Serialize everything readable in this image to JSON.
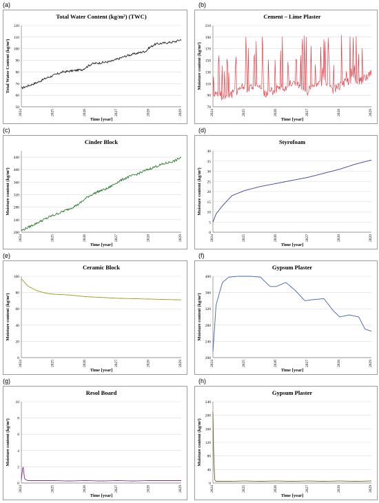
{
  "chart_data": [
    {
      "panel": "(a)",
      "type": "line",
      "title": "Total Water Content (kg/m²) (TWC)",
      "xlabel": "Time [year]",
      "ylabel": "Total Water Content (kg/m²)",
      "xlim": [
        2024,
        2029
      ],
      "ylim": [
        50,
        120
      ],
      "yticks": [
        50,
        60,
        70,
        80,
        90,
        100,
        110,
        120
      ],
      "xticks": [
        "2024",
        "2025",
        "2026",
        "2027",
        "2028",
        "2029"
      ],
      "grid": true,
      "series": [
        {
          "color": "#222222",
          "noise": 1.0,
          "x": [
            2024,
            2024.2,
            2024.5,
            2024.8,
            2025.0,
            2025.3,
            2025.6,
            2025.9,
            2026.2,
            2026.5,
            2026.8,
            2027.0,
            2027.3,
            2027.6,
            2027.9,
            2028.0,
            2028.2,
            2028.5,
            2028.8,
            2029.0
          ],
          "y": [
            66,
            68,
            71,
            75,
            77,
            80,
            81,
            82,
            87,
            88,
            89,
            91,
            94,
            96,
            98,
            101,
            104,
            105,
            106,
            108
          ]
        }
      ]
    },
    {
      "panel": "(b)",
      "type": "line",
      "title": "Cement – Lime Plaster",
      "xlabel": "Time [year]",
      "ylabel": "Moisture content (kg/m³)",
      "xlim": [
        2024,
        2029
      ],
      "ylim": [
        70,
        210
      ],
      "yticks": [
        70,
        90,
        110,
        130,
        150,
        170,
        190,
        210
      ],
      "xticks": [
        "2024",
        "2025",
        "2026",
        "2027",
        "2028",
        "2029"
      ],
      "grid": true,
      "series": [
        {
          "color": "#e8212a",
          "spiky": true,
          "spikeTop": 195,
          "x": [
            2024,
            2024.3,
            2024.6,
            2024.9,
            2025.1,
            2025.4,
            2025.7,
            2026.0,
            2026.3,
            2026.6,
            2026.9,
            2027.2,
            2027.5,
            2027.8,
            2028.1,
            2028.4,
            2028.7,
            2029.0
          ],
          "y": [
            95,
            88,
            92,
            105,
            100,
            110,
            90,
            100,
            105,
            112,
            95,
            105,
            115,
            100,
            110,
            120,
            115,
            130
          ]
        }
      ]
    },
    {
      "panel": "(c)",
      "type": "line",
      "title": "Cinder Block",
      "xlabel": "Time [year]",
      "ylabel": "Moisture content (kg/m³)",
      "xlim": [
        2024,
        2029
      ],
      "ylim": [
        200,
        460
      ],
      "yticks": [
        200,
        240,
        280,
        320,
        360,
        400,
        440
      ],
      "xticks": [
        "2024",
        "2025",
        "2026",
        "2027",
        "2028",
        "2029"
      ],
      "grid": true,
      "series": [
        {
          "color": "#2e7d32",
          "noise": 4,
          "x": [
            2024,
            2024.3,
            2024.6,
            2024.9,
            2025.2,
            2025.5,
            2025.8,
            2026.1,
            2026.4,
            2026.7,
            2027.0,
            2027.3,
            2027.6,
            2027.9,
            2028.2,
            2028.5,
            2028.8,
            2029.0
          ],
          "y": [
            205,
            220,
            235,
            250,
            262,
            275,
            290,
            315,
            330,
            340,
            360,
            375,
            385,
            398,
            410,
            420,
            428,
            440
          ]
        }
      ]
    },
    {
      "panel": "(d)",
      "type": "line",
      "title": "Styrofoam",
      "xlabel": "Time [year]",
      "ylabel": "Moisture content (kg/m³)",
      "xlim": [
        2024,
        2029
      ],
      "ylim": [
        0,
        40
      ],
      "yticks": [
        0,
        5,
        10,
        15,
        20,
        25,
        30,
        35,
        40
      ],
      "xticks": [
        "2024",
        "2025",
        "2026",
        "2027",
        "2028",
        "2029"
      ],
      "grid": true,
      "series": [
        {
          "color": "#3b3b98",
          "x": [
            2024,
            2024.1,
            2024.3,
            2024.6,
            2025.0,
            2025.5,
            2026.0,
            2026.5,
            2027.0,
            2027.5,
            2028.0,
            2028.5,
            2029.0
          ],
          "y": [
            5,
            9,
            13,
            18,
            20.5,
            22.5,
            24,
            25.5,
            27,
            29,
            31,
            33.5,
            35.5
          ]
        }
      ]
    },
    {
      "panel": "(e)",
      "type": "line",
      "title": "Ceramic Block",
      "xlabel": "Time [year]",
      "ylabel": "Moisture content (kg/m³)",
      "xlim": [
        2024,
        2029
      ],
      "ylim": [
        0,
        100
      ],
      "yticks": [
        0,
        20,
        40,
        60,
        80,
        100
      ],
      "xticks": [
        "2024",
        "2025",
        "2026",
        "2027",
        "2028",
        "2029"
      ],
      "grid": true,
      "series": [
        {
          "color": "#9a9a16",
          "x": [
            2024,
            2024.2,
            2024.5,
            2024.8,
            2025.0,
            2025.5,
            2026.0,
            2026.5,
            2027.0,
            2027.5,
            2028.0,
            2028.5,
            2029.0
          ],
          "y": [
            97,
            88,
            82,
            79,
            78,
            77,
            75,
            74,
            73,
            72.5,
            72,
            71.5,
            71
          ]
        }
      ]
    },
    {
      "panel": "(f)",
      "type": "line",
      "title": "Gypsum Plaster",
      "xlabel": "Time [year]",
      "ylabel": "Moisture content (kg/m³)",
      "xlim": [
        2024,
        2029
      ],
      "ylim": [
        200,
        400
      ],
      "yticks": [
        200,
        240,
        280,
        320,
        360,
        400
      ],
      "xticks": [
        "2024",
        "2025",
        "2026",
        "2027",
        "2028",
        "2029"
      ],
      "grid": true,
      "series": [
        {
          "color": "#3f5fb5",
          "x": [
            2024,
            2024.1,
            2024.3,
            2024.5,
            2024.8,
            2025.2,
            2025.5,
            2025.8,
            2026.0,
            2026.3,
            2026.6,
            2026.9,
            2027.2,
            2027.5,
            2027.8,
            2028.0,
            2028.3,
            2028.6,
            2028.8,
            2029.0
          ],
          "y": [
            215,
            330,
            385,
            398,
            400,
            400,
            398,
            375,
            375,
            385,
            365,
            340,
            343,
            345,
            315,
            300,
            305,
            300,
            270,
            265
          ]
        }
      ]
    },
    {
      "panel": "(g)",
      "type": "line",
      "title": "Resol Board",
      "xlabel": "Time [year]",
      "ylabel": "Moisture content (kg/m³)",
      "xlim": [
        2024,
        2029
      ],
      "ylim": [
        0,
        10
      ],
      "yticks": [
        0,
        2,
        4,
        6,
        8,
        10
      ],
      "xticks": [
        "2024",
        "2025",
        "2026",
        "2027",
        "2028",
        "2029"
      ],
      "grid": true,
      "series": [
        {
          "color": "#7b2d8b",
          "x": [
            2024,
            2024.05,
            2024.1,
            2024.2,
            2024.5,
            2025.0,
            2025.5,
            2026.0,
            2026.5,
            2027.0,
            2027.5,
            2028.0,
            2028.5,
            2029.0
          ],
          "y": [
            0.4,
            2.2,
            0.5,
            0.3,
            0.3,
            0.3,
            0.25,
            0.3,
            0.25,
            0.3,
            0.25,
            0.3,
            0.3,
            0.3
          ]
        }
      ]
    },
    {
      "panel": "(h)",
      "type": "line",
      "title": "Gypsum Plaster",
      "xlabel": "Time [year]",
      "ylabel": "Moisture content (kg/m³)",
      "xlim": [
        2024,
        2029
      ],
      "ylim": [
        0,
        240
      ],
      "yticks": [
        0,
        40,
        80,
        120,
        160,
        200,
        240
      ],
      "xticks": [
        "2024",
        "2025",
        "2026",
        "2027",
        "2028",
        "2029"
      ],
      "grid": true,
      "series": [
        {
          "color": "#6b5a2a",
          "x": [
            2024,
            2024.02,
            2024.05,
            2024.1,
            2024.5,
            2025.0,
            2025.5,
            2026.0,
            2026.5,
            2027.0,
            2027.5,
            2028.0,
            2028.5,
            2029.0
          ],
          "y": [
            210,
            100,
            10,
            5,
            5,
            6,
            5,
            6,
            5,
            6,
            5,
            6,
            5,
            6
          ]
        }
      ]
    }
  ]
}
